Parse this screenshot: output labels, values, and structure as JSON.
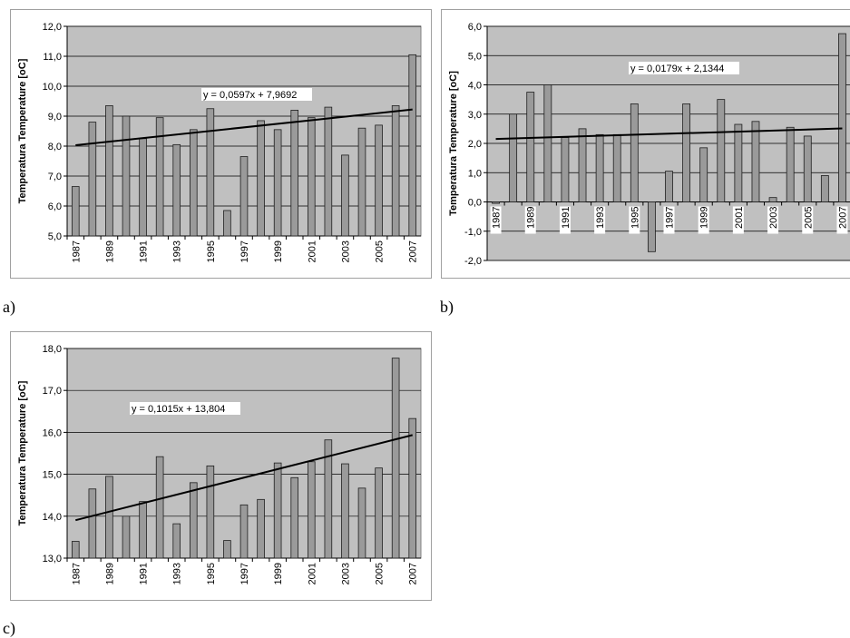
{
  "panels": {
    "a": {
      "label": "a)"
    },
    "b": {
      "label": "b)"
    },
    "c": {
      "label": "c)"
    }
  },
  "colors": {
    "plot_bg": "#c0c0c0",
    "bar_fill": "#9a9a9a",
    "bar_stroke": "#1e1e1e",
    "trend": "#000000",
    "grid": "#000000"
  },
  "chart_data": [
    {
      "id": "a",
      "type": "bar",
      "ylabel": "Temperatura Temperature [oC]",
      "ylim": [
        5,
        12
      ],
      "ystep": 1,
      "years": [
        1987,
        1988,
        1989,
        1990,
        1991,
        1992,
        1993,
        1994,
        1995,
        1996,
        1997,
        1998,
        1999,
        2000,
        2001,
        2002,
        2003,
        2004,
        2005,
        2006,
        2007
      ],
      "xticks": [
        "1987",
        "1989",
        "1991",
        "1993",
        "1995",
        "1997",
        "1999",
        "2001",
        "2003",
        "2005",
        "2007"
      ],
      "yticks": [
        "5,0",
        "6,0",
        "7,0",
        "8,0",
        "9,0",
        "10,0",
        "11,0",
        "12,0"
      ],
      "values": [
        6.65,
        8.8,
        9.35,
        9.0,
        8.25,
        8.95,
        8.05,
        8.55,
        9.25,
        5.85,
        7.65,
        8.85,
        8.55,
        9.2,
        8.95,
        9.3,
        7.7,
        8.6,
        8.7,
        9.35,
        11.05
      ],
      "trend": {
        "slope": 0.0597,
        "intercept": 7.9692,
        "label": "y = 0,0597x + 7,9692"
      },
      "grid": true,
      "xlabel_position": "bottom"
    },
    {
      "id": "b",
      "type": "bar",
      "ylabel": "Temperatura Temperature [oC]",
      "ylim": [
        -2,
        6
      ],
      "ystep": 1,
      "years": [
        1987,
        1988,
        1989,
        1990,
        1991,
        1992,
        1993,
        1994,
        1995,
        1996,
        1997,
        1998,
        1999,
        2000,
        2001,
        2002,
        2003,
        2004,
        2005,
        2006,
        2007
      ],
      "xticks": [
        "1987",
        "1989",
        "1991",
        "1993",
        "1995",
        "1997",
        "1999",
        "2001",
        "2003",
        "2005",
        "2007"
      ],
      "yticks": [
        "-2,0",
        "-1,0",
        "0,0",
        "1,0",
        "2,0",
        "3,0",
        "4,0",
        "5,0",
        "6,0"
      ],
      "values": [
        -0.05,
        3.0,
        3.75,
        4.0,
        2.2,
        2.5,
        2.3,
        2.3,
        3.35,
        -1.7,
        1.05,
        3.35,
        1.85,
        3.5,
        2.65,
        2.75,
        0.15,
        2.55,
        2.25,
        0.9,
        5.75
      ],
      "trend": {
        "slope": 0.0179,
        "intercept": 2.1344,
        "label": "y = 0,0179x + 2,1344"
      },
      "grid": true,
      "xlabel_position": "at-zero"
    },
    {
      "id": "c",
      "type": "bar",
      "ylabel": "Temperatura Temperature [oC]",
      "ylim": [
        13,
        18
      ],
      "ystep": 1,
      "years": [
        1987,
        1988,
        1989,
        1990,
        1991,
        1992,
        1993,
        1994,
        1995,
        1996,
        1997,
        1998,
        1999,
        2000,
        2001,
        2002,
        2003,
        2004,
        2005,
        2006,
        2007
      ],
      "xticks": [
        "1987",
        "1989",
        "1991",
        "1993",
        "1995",
        "1997",
        "1999",
        "2001",
        "2003",
        "2005",
        "2007"
      ],
      "yticks": [
        "13,0",
        "14,0",
        "15,0",
        "16,0",
        "17,0",
        "18,0"
      ],
      "values": [
        13.4,
        14.65,
        14.95,
        14.0,
        14.35,
        15.42,
        13.82,
        14.8,
        15.2,
        13.42,
        14.27,
        14.4,
        15.27,
        14.92,
        15.3,
        15.82,
        15.25,
        14.67,
        15.15,
        17.77,
        16.33
      ],
      "trend": {
        "slope": 0.1015,
        "intercept": 13.804,
        "label": "y = 0,1015x + 13,804"
      },
      "grid": true,
      "xlabel_position": "bottom"
    }
  ]
}
